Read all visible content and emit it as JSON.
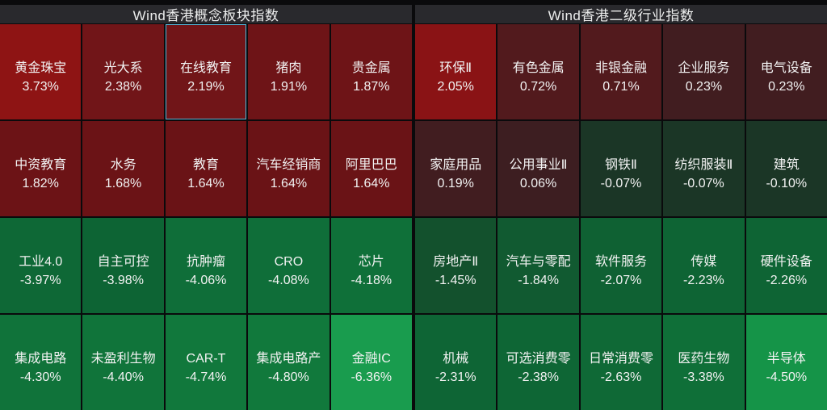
{
  "app_background": "#0a0a0c",
  "header_background": "#29292d",
  "selected_border_color": "#56b7da",
  "panels": [
    {
      "title": "Wind香港概念板块指数",
      "cells": [
        {
          "name": "黄金珠宝",
          "value": "3.73%",
          "color": "#8e1414",
          "selected": false
        },
        {
          "name": "光大系",
          "value": "2.38%",
          "color": "#711518",
          "selected": false
        },
        {
          "name": "在线教育",
          "value": "2.19%",
          "color": "#711518",
          "selected": true
        },
        {
          "name": "猪肉",
          "value": "1.91%",
          "color": "#6e1417",
          "selected": false
        },
        {
          "name": "贵金属",
          "value": "1.87%",
          "color": "#6e1417",
          "selected": false
        },
        {
          "name": "中资教育",
          "value": "1.82%",
          "color": "#6c1316",
          "selected": false
        },
        {
          "name": "水务",
          "value": "1.68%",
          "color": "#6b1316",
          "selected": false
        },
        {
          "name": "教育",
          "value": "1.64%",
          "color": "#6a1316",
          "selected": false
        },
        {
          "name": "汽车经销商",
          "value": "1.64%",
          "color": "#6a1316",
          "selected": false
        },
        {
          "name": "阿里巴巴",
          "value": "1.64%",
          "color": "#6a1316",
          "selected": false
        },
        {
          "name": "工业4.0",
          "value": "-3.97%",
          "color": "#0e6836",
          "selected": false
        },
        {
          "name": "自主可控",
          "value": "-3.98%",
          "color": "#0d6434",
          "selected": false
        },
        {
          "name": "抗肿瘤",
          "value": "-4.06%",
          "color": "#0f6e39",
          "selected": false
        },
        {
          "name": "CRO",
          "value": "-4.08%",
          "color": "#0f6e39",
          "selected": false
        },
        {
          "name": "芯片",
          "value": "-4.18%",
          "color": "#0f7039",
          "selected": false
        },
        {
          "name": "集成电路",
          "value": "-4.30%",
          "color": "#10733a",
          "selected": false
        },
        {
          "name": "未盈利生物",
          "value": "-4.40%",
          "color": "#10743a",
          "selected": false
        },
        {
          "name": "CAR-T",
          "value": "-4.74%",
          "color": "#11783c",
          "selected": false
        },
        {
          "name": "集成电路产",
          "value": "-4.80%",
          "color": "#11793c",
          "selected": false
        },
        {
          "name": "金融IC",
          "value": "-6.36%",
          "color": "#199c4e",
          "selected": false
        }
      ]
    },
    {
      "title": "Wind香港二级行业指数",
      "cells": [
        {
          "name": "环保Ⅱ",
          "value": "2.05%",
          "color": "#8a1315",
          "selected": false
        },
        {
          "name": "有色金属",
          "value": "0.72%",
          "color": "#521a1d",
          "selected": false
        },
        {
          "name": "非银金融",
          "value": "0.71%",
          "color": "#521a1d",
          "selected": false
        },
        {
          "name": "企业服务",
          "value": "0.23%",
          "color": "#411d20",
          "selected": false
        },
        {
          "name": "电气设备",
          "value": "0.23%",
          "color": "#411d20",
          "selected": false
        },
        {
          "name": "家庭用品",
          "value": "0.19%",
          "color": "#411d20",
          "selected": false
        },
        {
          "name": "公用事业Ⅱ",
          "value": "0.06%",
          "color": "#3d1e21",
          "selected": false
        },
        {
          "name": "钢铁Ⅱ",
          "value": "-0.07%",
          "color": "#1b3626",
          "selected": false
        },
        {
          "name": "纺织服装Ⅱ",
          "value": "-0.07%",
          "color": "#1b3626",
          "selected": false
        },
        {
          "name": "建筑",
          "value": "-0.10%",
          "color": "#1b3626",
          "selected": false
        },
        {
          "name": "房地产Ⅱ",
          "value": "-1.45%",
          "color": "#13512d",
          "selected": false
        },
        {
          "name": "汽车与零配",
          "value": "-1.84%",
          "color": "#115a31",
          "selected": false
        },
        {
          "name": "软件服务",
          "value": "-2.07%",
          "color": "#0f6133",
          "selected": false
        },
        {
          "name": "传媒",
          "value": "-2.23%",
          "color": "#0e6434",
          "selected": false
        },
        {
          "name": "硬件设备",
          "value": "-2.26%",
          "color": "#0e6434",
          "selected": false
        },
        {
          "name": "机械",
          "value": "-2.31%",
          "color": "#0e6535",
          "selected": false
        },
        {
          "name": "可选消费零",
          "value": "-2.38%",
          "color": "#0e6635",
          "selected": false
        },
        {
          "name": "日常消费零",
          "value": "-2.63%",
          "color": "#0f6936",
          "selected": false
        },
        {
          "name": "医药生物",
          "value": "-3.38%",
          "color": "#0f6f38",
          "selected": false
        },
        {
          "name": "半导体",
          "value": "-4.50%",
          "color": "#159448",
          "selected": false
        }
      ]
    }
  ],
  "chart_data": {
    "type": "heatmap",
    "legend_position": "none",
    "color_scale": "red(positive)-to-green(negative), brighter = larger magnitude",
    "groups": [
      {
        "title": "Wind香港概念板块指数",
        "grid": [
          5,
          4
        ],
        "points": [
          {
            "label": "黄金珠宝",
            "value": 3.73
          },
          {
            "label": "光大系",
            "value": 2.38
          },
          {
            "label": "在线教育",
            "value": 2.19
          },
          {
            "label": "猪肉",
            "value": 1.91
          },
          {
            "label": "贵金属",
            "value": 1.87
          },
          {
            "label": "中资教育",
            "value": 1.82
          },
          {
            "label": "水务",
            "value": 1.68
          },
          {
            "label": "教育",
            "value": 1.64
          },
          {
            "label": "汽车经销商",
            "value": 1.64
          },
          {
            "label": "阿里巴巴",
            "value": 1.64
          },
          {
            "label": "工业4.0",
            "value": -3.97
          },
          {
            "label": "自主可控",
            "value": -3.98
          },
          {
            "label": "抗肿瘤",
            "value": -4.06
          },
          {
            "label": "CRO",
            "value": -4.08
          },
          {
            "label": "芯片",
            "value": -4.18
          },
          {
            "label": "集成电路",
            "value": -4.3
          },
          {
            "label": "未盈利生物",
            "value": -4.4
          },
          {
            "label": "CAR-T",
            "value": -4.74
          },
          {
            "label": "集成电路产",
            "value": -4.8
          },
          {
            "label": "金融IC",
            "value": -6.36
          }
        ]
      },
      {
        "title": "Wind香港二级行业指数",
        "grid": [
          5,
          4
        ],
        "points": [
          {
            "label": "环保Ⅱ",
            "value": 2.05
          },
          {
            "label": "有色金属",
            "value": 0.72
          },
          {
            "label": "非银金融",
            "value": 0.71
          },
          {
            "label": "企业服务",
            "value": 0.23
          },
          {
            "label": "电气设备",
            "value": 0.23
          },
          {
            "label": "家庭用品",
            "value": 0.19
          },
          {
            "label": "公用事业Ⅱ",
            "value": 0.06
          },
          {
            "label": "钢铁Ⅱ",
            "value": -0.07
          },
          {
            "label": "纺织服装Ⅱ",
            "value": -0.07
          },
          {
            "label": "建筑",
            "value": -0.1
          },
          {
            "label": "房地产Ⅱ",
            "value": -1.45
          },
          {
            "label": "汽车与零配",
            "value": -1.84
          },
          {
            "label": "软件服务",
            "value": -2.07
          },
          {
            "label": "传媒",
            "value": -2.23
          },
          {
            "label": "硬件设备",
            "value": -2.26
          },
          {
            "label": "机械",
            "value": -2.31
          },
          {
            "label": "可选消费零",
            "value": -2.38
          },
          {
            "label": "日常消费零",
            "value": -2.63
          },
          {
            "label": "医药生物",
            "value": -3.38
          },
          {
            "label": "半导体",
            "value": -4.5
          }
        ]
      }
    ]
  }
}
